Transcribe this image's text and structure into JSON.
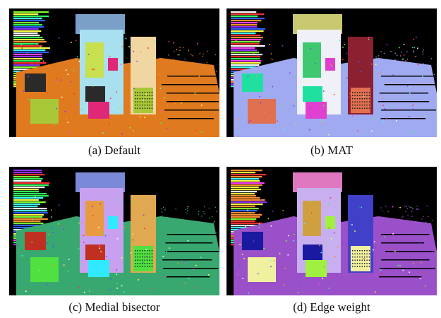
{
  "figure": {
    "panels": [
      {
        "caption": "(a) Default",
        "palette": {
          "ground": "#e07a1f",
          "buildingA": "#a8e0f0",
          "buildingB": "#f0d6a0",
          "stack": "#7aa0c8",
          "accent1": "#e02878",
          "accent2": "#c8e050",
          "accent3": "#2a2a2a",
          "accent4": "#a8c838"
        }
      },
      {
        "caption": "(b) MAT",
        "palette": {
          "ground": "#a0aaf0",
          "buildingA": "#f0f0f8",
          "buildingB": "#8a2030",
          "stack": "#c8c870",
          "accent1": "#e040d0",
          "accent2": "#40c870",
          "accent3": "#20e0a0",
          "accent4": "#e07050"
        }
      },
      {
        "caption": "(c) Medial bisector",
        "palette": {
          "ground": "#38a870",
          "buildingA": "#c8a0f0",
          "buildingB": "#e0a850",
          "stack": "#7a8ad8",
          "accent1": "#30e8ff",
          "accent2": "#e89a40",
          "accent3": "#c03020",
          "accent4": "#50e040"
        }
      },
      {
        "caption": "(d) Edge weight",
        "palette": {
          "ground": "#9a50c8",
          "buildingA": "#c8b0f0",
          "buildingB": "#4040c8",
          "stack": "#e078c0",
          "accent1": "#a0f040",
          "accent2": "#d0a040",
          "accent3": "#1a1aa0",
          "accent4": "#f0f0a0"
        }
      }
    ]
  }
}
